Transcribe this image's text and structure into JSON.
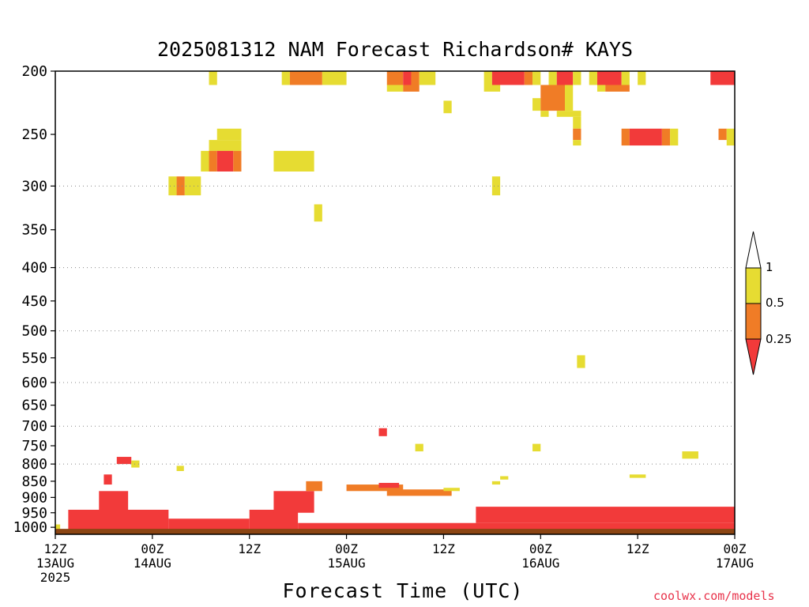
{
  "chart_data": {
    "type": "heatmap",
    "title": "2025081312 NAM Forecast Richardson# KAYS",
    "xlabel": "Forecast Time (UTC)",
    "ylabel": "",
    "y_axis": {
      "scale": "log-pressure",
      "reversed": true,
      "range_hPa": [
        1025,
        200
      ],
      "ticks": [
        200,
        250,
        300,
        350,
        400,
        450,
        500,
        550,
        600,
        650,
        700,
        750,
        800,
        850,
        900,
        950,
        1000
      ],
      "gridlines_at": [
        300,
        400,
        500,
        600,
        700,
        800
      ],
      "grid": "dotted"
    },
    "x_axis": {
      "range_forecast_hours": [
        0,
        84
      ],
      "ticks": [
        {
          "hour": 0,
          "line1": "12Z",
          "line2": "13AUG",
          "line3": "2025"
        },
        {
          "hour": 12,
          "line1": "00Z",
          "line2": "14AUG",
          "line3": ""
        },
        {
          "hour": 24,
          "line1": "12Z",
          "line2": "",
          "line3": ""
        },
        {
          "hour": 36,
          "line1": "00Z",
          "line2": "15AUG",
          "line3": ""
        },
        {
          "hour": 48,
          "line1": "12Z",
          "line2": "",
          "line3": ""
        },
        {
          "hour": 60,
          "line1": "00Z",
          "line2": "16AUG",
          "line3": ""
        },
        {
          "hour": 72,
          "line1": "12Z",
          "line2": "",
          "line3": ""
        },
        {
          "hour": 84,
          "line1": "00Z",
          "line2": "17AUG",
          "line3": ""
        }
      ]
    },
    "colors": {
      "lt_0_25": "#f23a3a",
      "0_25_to_0_5": "#f07c26",
      "0_5_to_1": "#e6dc32",
      "gt_1": "#ffffff",
      "ground": "#8b4513"
    },
    "legend": {
      "placement": "right",
      "labels": [
        "1",
        "0.5",
        "0.25"
      ]
    },
    "ground_level_hPa": 1000,
    "cells": [
      {
        "h0": 0.0,
        "h1": 0.6,
        "p0": 1010,
        "p1": 990,
        "c": "y"
      },
      {
        "h0": 1.6,
        "h1": 14,
        "p0": 1010,
        "p1": 940,
        "c": "r"
      },
      {
        "h0": 14,
        "h1": 24,
        "p0": 1010,
        "p1": 970,
        "c": "r"
      },
      {
        "h0": 24,
        "h1": 30,
        "p0": 1010,
        "p1": 940,
        "c": "r"
      },
      {
        "h0": 30,
        "h1": 84,
        "p0": 1010,
        "p1": 985,
        "c": "r"
      },
      {
        "h0": 5.4,
        "h1": 9,
        "p0": 950,
        "p1": 880,
        "c": "r"
      },
      {
        "h0": 6.0,
        "h1": 7.0,
        "p0": 860,
        "p1": 830,
        "c": "r"
      },
      {
        "h0": 7.6,
        "h1": 9.4,
        "p0": 800,
        "p1": 780,
        "c": "r"
      },
      {
        "h0": 9.4,
        "h1": 10.4,
        "p0": 810,
        "p1": 790,
        "c": "y"
      },
      {
        "h0": 15,
        "h1": 15.9,
        "p0": 820,
        "p1": 805,
        "c": "y"
      },
      {
        "h0": 27,
        "h1": 32,
        "p0": 950,
        "p1": 880,
        "c": "r"
      },
      {
        "h0": 31,
        "h1": 33,
        "p0": 880,
        "p1": 850,
        "c": "o"
      },
      {
        "h0": 36,
        "h1": 43,
        "p0": 880,
        "p1": 860,
        "c": "o"
      },
      {
        "h0": 41,
        "h1": 49,
        "p0": 895,
        "p1": 875,
        "c": "o"
      },
      {
        "h0": 40,
        "h1": 42.5,
        "p0": 870,
        "p1": 855,
        "c": "r"
      },
      {
        "h0": 48,
        "h1": 50,
        "p0": 880,
        "p1": 870,
        "c": "y"
      },
      {
        "h0": 54,
        "h1": 55,
        "p0": 860,
        "p1": 850,
        "c": "y"
      },
      {
        "h0": 55,
        "h1": 56,
        "p0": 845,
        "p1": 835,
        "c": "y"
      },
      {
        "h0": 52,
        "h1": 84,
        "p0": 985,
        "p1": 930,
        "c": "r"
      },
      {
        "h0": 59,
        "h1": 60,
        "p0": 765,
        "p1": 745,
        "c": "y"
      },
      {
        "h0": 44.5,
        "h1": 45.5,
        "p0": 765,
        "p1": 745,
        "c": "y"
      },
      {
        "h0": 40,
        "h1": 41,
        "p0": 725,
        "p1": 705,
        "c": "r"
      },
      {
        "h0": 64.5,
        "h1": 65.5,
        "p0": 570,
        "p1": 545,
        "c": "y"
      },
      {
        "h0": 77.5,
        "h1": 79.5,
        "p0": 785,
        "p1": 765,
        "c": "y"
      },
      {
        "h0": 71,
        "h1": 73,
        "p0": 840,
        "p1": 830,
        "c": "y"
      },
      {
        "h0": 19,
        "h1": 20,
        "p0": 210,
        "p1": 200,
        "c": "y"
      },
      {
        "h0": 28,
        "h1": 29,
        "p0": 210,
        "p1": 200,
        "c": "y"
      },
      {
        "h0": 29,
        "h1": 33,
        "p0": 210,
        "p1": 200,
        "c": "o"
      },
      {
        "h0": 33,
        "h1": 36,
        "p0": 210,
        "p1": 200,
        "c": "y"
      },
      {
        "h0": 41,
        "h1": 43,
        "p0": 210,
        "p1": 200,
        "c": "o"
      },
      {
        "h0": 43,
        "h1": 44,
        "p0": 210,
        "p1": 200,
        "c": "r"
      },
      {
        "h0": 44,
        "h1": 45,
        "p0": 210,
        "p1": 200,
        "c": "o"
      },
      {
        "h0": 45,
        "h1": 47,
        "p0": 210,
        "p1": 200,
        "c": "y"
      },
      {
        "h0": 53,
        "h1": 54,
        "p0": 210,
        "p1": 200,
        "c": "y"
      },
      {
        "h0": 54,
        "h1": 58,
        "p0": 210,
        "p1": 200,
        "c": "r"
      },
      {
        "h0": 58,
        "h1": 59,
        "p0": 210,
        "p1": 200,
        "c": "o"
      },
      {
        "h0": 59,
        "h1": 60,
        "p0": 210,
        "p1": 200,
        "c": "y"
      },
      {
        "h0": 61,
        "h1": 62,
        "p0": 210,
        "p1": 200,
        "c": "y"
      },
      {
        "h0": 62,
        "h1": 64,
        "p0": 210,
        "p1": 200,
        "c": "r"
      },
      {
        "h0": 64,
        "h1": 65,
        "p0": 210,
        "p1": 200,
        "c": "y"
      },
      {
        "h0": 66,
        "h1": 67,
        "p0": 210,
        "p1": 200,
        "c": "y"
      },
      {
        "h0": 67,
        "h1": 70,
        "p0": 210,
        "p1": 200,
        "c": "r"
      },
      {
        "h0": 70,
        "h1": 71,
        "p0": 210,
        "p1": 200,
        "c": "y"
      },
      {
        "h0": 72,
        "h1": 73,
        "p0": 210,
        "p1": 200,
        "c": "y"
      },
      {
        "h0": 81,
        "h1": 84,
        "p0": 210,
        "p1": 200,
        "c": "r"
      },
      {
        "h0": 41,
        "h1": 43,
        "p0": 215,
        "p1": 210,
        "c": "y"
      },
      {
        "h0": 43,
        "h1": 45,
        "p0": 215,
        "p1": 210,
        "c": "o"
      },
      {
        "h0": 53,
        "h1": 55,
        "p0": 215,
        "p1": 210,
        "c": "y"
      },
      {
        "h0": 67,
        "h1": 68,
        "p0": 215,
        "p1": 210,
        "c": "y"
      },
      {
        "h0": 68,
        "h1": 71,
        "p0": 215,
        "p1": 210,
        "c": "o"
      },
      {
        "h0": 48,
        "h1": 49,
        "p0": 232,
        "p1": 222,
        "c": "y"
      },
      {
        "h0": 59,
        "h1": 60,
        "p0": 230,
        "p1": 220,
        "c": "y"
      },
      {
        "h0": 60,
        "h1": 63,
        "p0": 230,
        "p1": 210,
        "c": "o"
      },
      {
        "h0": 63,
        "h1": 64,
        "p0": 230,
        "p1": 210,
        "c": "y"
      },
      {
        "h0": 60,
        "h1": 61,
        "p0": 235,
        "p1": 230,
        "c": "y"
      },
      {
        "h0": 62,
        "h1": 65,
        "p0": 235,
        "p1": 230,
        "c": "y"
      },
      {
        "h0": 64,
        "h1": 65,
        "p0": 245,
        "p1": 235,
        "c": "y"
      },
      {
        "h0": 64,
        "h1": 65,
        "p0": 255,
        "p1": 245,
        "c": "o"
      },
      {
        "h0": 64,
        "h1": 65,
        "p0": 260,
        "p1": 255,
        "c": "y"
      },
      {
        "h0": 70,
        "h1": 71,
        "p0": 260,
        "p1": 245,
        "c": "o"
      },
      {
        "h0": 71,
        "h1": 75,
        "p0": 260,
        "p1": 245,
        "c": "r"
      },
      {
        "h0": 75,
        "h1": 76,
        "p0": 260,
        "p1": 245,
        "c": "o"
      },
      {
        "h0": 76,
        "h1": 77,
        "p0": 260,
        "p1": 245,
        "c": "y"
      },
      {
        "h0": 82,
        "h1": 83,
        "p0": 255,
        "p1": 245,
        "c": "o"
      },
      {
        "h0": 83,
        "h1": 84,
        "p0": 260,
        "p1": 245,
        "c": "y"
      },
      {
        "h0": 20,
        "h1": 23,
        "p0": 255,
        "p1": 245,
        "c": "y"
      },
      {
        "h0": 19,
        "h1": 23,
        "p0": 265,
        "p1": 255,
        "c": "y"
      },
      {
        "h0": 18,
        "h1": 19,
        "p0": 285,
        "p1": 265,
        "c": "y"
      },
      {
        "h0": 19,
        "h1": 20,
        "p0": 285,
        "p1": 265,
        "c": "o"
      },
      {
        "h0": 20,
        "h1": 22,
        "p0": 285,
        "p1": 265,
        "c": "r"
      },
      {
        "h0": 22,
        "h1": 23,
        "p0": 285,
        "p1": 265,
        "c": "o"
      },
      {
        "h0": 27,
        "h1": 32,
        "p0": 285,
        "p1": 265,
        "c": "y"
      },
      {
        "h0": 14,
        "h1": 15,
        "p0": 310,
        "p1": 290,
        "c": "y"
      },
      {
        "h0": 15,
        "h1": 16,
        "p0": 310,
        "p1": 290,
        "c": "o"
      },
      {
        "h0": 16,
        "h1": 18,
        "p0": 310,
        "p1": 290,
        "c": "y"
      },
      {
        "h0": 32,
        "h1": 33,
        "p0": 340,
        "p1": 320,
        "c": "y"
      },
      {
        "h0": 54,
        "h1": 55,
        "p0": 310,
        "p1": 290,
        "c": "y"
      }
    ]
  }
}
